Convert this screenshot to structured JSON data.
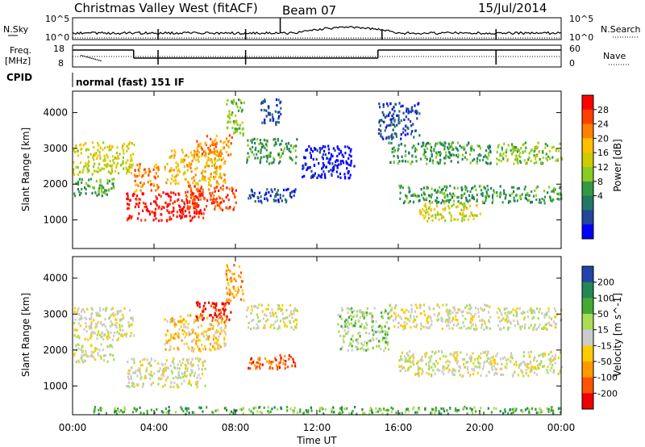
{
  "header": {
    "station": "Christmas Valley West (fitACF)",
    "beam": "Beam 07",
    "date": "15/Jul/2014"
  },
  "panels": {
    "nsky": {
      "label": "N.Sky",
      "left_ticks": [
        "10^5",
        "10^0"
      ],
      "right_ticks": [
        "10^5",
        "10^0"
      ],
      "right_label": "N.Search"
    },
    "freq": {
      "label_line1": "Freq.",
      "label_line2": "[MHz]",
      "left_ticks": [
        "18",
        "8"
      ],
      "right_ticks": [
        "60",
        "0"
      ],
      "right_label": "Nave"
    },
    "cpid": {
      "label": "CPID",
      "text": "normal (fast) 151 IF"
    }
  },
  "x_axis": {
    "label": "Time UT",
    "ticks": [
      "00:00",
      "04:00",
      "08:00",
      "12:00",
      "16:00",
      "20:00",
      "00:00"
    ]
  },
  "colorbars": {
    "power": {
      "label": "Power [dB]",
      "ticks": [
        "28",
        "24",
        "20",
        "16",
        "12",
        "8",
        "4"
      ],
      "colors": [
        "#ff0000",
        "#ff4000",
        "#ff8000",
        "#ffc000",
        "#cccc00",
        "#88cc22",
        "#339944",
        "#227766",
        "#224499",
        "#0000ff"
      ]
    },
    "velocity": {
      "label": "Velocity [m s^-1]",
      "ticks": [
        "200",
        "100",
        "50",
        "15",
        "-15",
        "-50",
        "-100",
        "-200"
      ],
      "colors": [
        "#2244aa",
        "#228855",
        "#44aa33",
        "#aadd55",
        "#cccccc",
        "#ffcc00",
        "#ff9900",
        "#ff5500",
        "#ee0000"
      ]
    }
  },
  "chart_data": [
    {
      "type": "heatmap",
      "name": "power",
      "ylabel": "Slant Range [km]",
      "xlabel": "",
      "x_range_hours": [
        0,
        24
      ],
      "ylim": [
        200,
        4600
      ],
      "yticks": [
        "4000",
        "3000",
        "2000",
        "1000"
      ],
      "bands": [
        {
          "x0": 0.0,
          "x1": 3.0,
          "y0": 2300,
          "y1": 3200,
          "level": 4
        },
        {
          "x0": 0.0,
          "x1": 2.0,
          "y0": 1700,
          "y1": 2200,
          "level": 6
        },
        {
          "x0": 2.6,
          "x1": 6.5,
          "y0": 1000,
          "y1": 1800,
          "level": 0
        },
        {
          "x0": 3.0,
          "x1": 4.2,
          "y0": 1800,
          "y1": 2600,
          "level": 2
        },
        {
          "x0": 4.5,
          "x1": 7.5,
          "y0": 2000,
          "y1": 3000,
          "level": 3
        },
        {
          "x0": 5.5,
          "x1": 8.0,
          "y0": 1300,
          "y1": 2000,
          "level": 1
        },
        {
          "x0": 6.0,
          "x1": 7.8,
          "y0": 2800,
          "y1": 3400,
          "level": 2
        },
        {
          "x0": 7.5,
          "x1": 8.4,
          "y0": 3400,
          "y1": 4400,
          "level": 5
        },
        {
          "x0": 8.5,
          "x1": 11.0,
          "y0": 2600,
          "y1": 3300,
          "level": 6
        },
        {
          "x0": 8.6,
          "x1": 11.0,
          "y0": 1500,
          "y1": 1900,
          "level": 8
        },
        {
          "x0": 9.2,
          "x1": 10.2,
          "y0": 3700,
          "y1": 4400,
          "level": 8
        },
        {
          "x0": 11.2,
          "x1": 13.8,
          "y0": 2200,
          "y1": 3100,
          "level": 9
        },
        {
          "x0": 15.0,
          "x1": 17.0,
          "y0": 3300,
          "y1": 4300,
          "level": 8
        },
        {
          "x0": 15.5,
          "x1": 20.5,
          "y0": 2600,
          "y1": 3200,
          "level": 6
        },
        {
          "x0": 16.0,
          "x1": 24.0,
          "y0": 1500,
          "y1": 2000,
          "level": 6
        },
        {
          "x0": 17.0,
          "x1": 20.0,
          "y0": 1000,
          "y1": 1500,
          "level": 4
        },
        {
          "x0": 20.8,
          "x1": 24.0,
          "y0": 2600,
          "y1": 3200,
          "level": 5
        }
      ]
    },
    {
      "type": "heatmap",
      "name": "velocity",
      "ylabel": "Slant Range [km]",
      "xlabel": "Time UT",
      "x_range_hours": [
        0,
        24
      ],
      "ylim": [
        200,
        4600
      ],
      "yticks": [
        "4000",
        "3000",
        "2000",
        "1000"
      ],
      "bands": [
        {
          "x0": 0.0,
          "x1": 3.0,
          "y0": 2300,
          "y1": 3200,
          "level": 4
        },
        {
          "x0": 0.0,
          "x1": 2.0,
          "y0": 1700,
          "y1": 2200,
          "level": 4
        },
        {
          "x0": 2.6,
          "x1": 6.5,
          "y0": 1000,
          "y1": 1800,
          "level": 4
        },
        {
          "x0": 4.5,
          "x1": 7.5,
          "y0": 2000,
          "y1": 3000,
          "level": 5
        },
        {
          "x0": 6.0,
          "x1": 7.8,
          "y0": 2800,
          "y1": 3400,
          "level": 8
        },
        {
          "x0": 7.5,
          "x1": 8.4,
          "y0": 3400,
          "y1": 4400,
          "level": 6
        },
        {
          "x0": 8.6,
          "x1": 11.0,
          "y0": 1500,
          "y1": 1900,
          "level": 7
        },
        {
          "x0": 8.5,
          "x1": 11.0,
          "y0": 2600,
          "y1": 3300,
          "level": 4
        },
        {
          "x0": 13.0,
          "x1": 15.5,
          "y0": 2000,
          "y1": 3200,
          "level": 3
        },
        {
          "x0": 15.5,
          "x1": 20.5,
          "y0": 2600,
          "y1": 3300,
          "level": 4
        },
        {
          "x0": 16.0,
          "x1": 24.0,
          "y0": 1300,
          "y1": 2000,
          "level": 4
        },
        {
          "x0": 20.8,
          "x1": 24.0,
          "y0": 2600,
          "y1": 3200,
          "level": 4
        },
        {
          "x0": 1.0,
          "x1": 24.0,
          "y0": 250,
          "y1": 450,
          "level": 2
        }
      ]
    }
  ]
}
